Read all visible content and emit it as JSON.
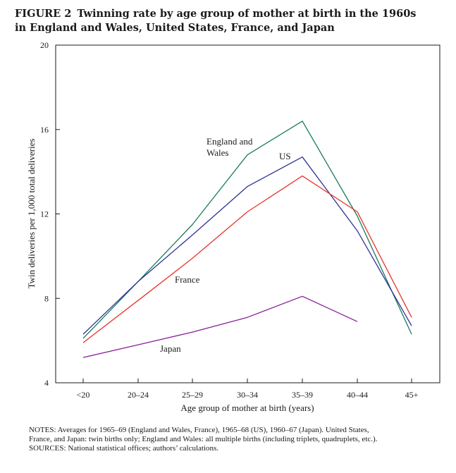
{
  "figure": {
    "number": "FIGURE 2",
    "title_line1": "Twinning rate by age group of mother at birth in the 1960s",
    "title_line2": "in England and Wales, United States, France, and Japan"
  },
  "chart_data": {
    "type": "line",
    "xlabel": "Age group of mother at birth (years)",
    "ylabel": "Twin deliveries per 1,000 total deliveries",
    "categories": [
      "<20",
      "20–24",
      "25–29",
      "30–34",
      "35–39",
      "40–44",
      "45+"
    ],
    "ylim": [
      4,
      20
    ],
    "yticks": [
      4,
      8,
      12,
      16,
      20
    ],
    "grid": false,
    "legend": "inline labels",
    "series": [
      {
        "name": "England and Wales",
        "label_lines": [
          "England and",
          "Wales"
        ],
        "color": "#1a7a5e",
        "values": [
          6.1,
          8.8,
          11.5,
          14.8,
          16.4,
          11.9,
          6.3
        ]
      },
      {
        "name": "US",
        "label_lines": [
          "US"
        ],
        "color": "#2e3192",
        "values": [
          6.3,
          8.8,
          11.0,
          13.3,
          14.7,
          11.2,
          6.7
        ]
      },
      {
        "name": "France",
        "label_lines": [
          "France"
        ],
        "color": "#e8332a",
        "values": [
          5.9,
          7.9,
          9.9,
          12.1,
          13.8,
          12.1,
          7.1
        ]
      },
      {
        "name": "Japan",
        "label_lines": [
          "Japan"
        ],
        "color": "#8b1e9b",
        "values": [
          5.2,
          5.8,
          6.4,
          7.1,
          8.1,
          6.9,
          null
        ]
      }
    ]
  },
  "notes": {
    "line1": "NOTES: Averages for 1965–69 (England and Wales, France), 1965–68 (US), 1960–67 (Japan). United States,",
    "line2": "France, and Japan: twin births only; England and Wales: all multiple births (including triplets, quadruplets, etc.).",
    "line3": "SOURCES: National statistical offices; authors’ calculations."
  }
}
